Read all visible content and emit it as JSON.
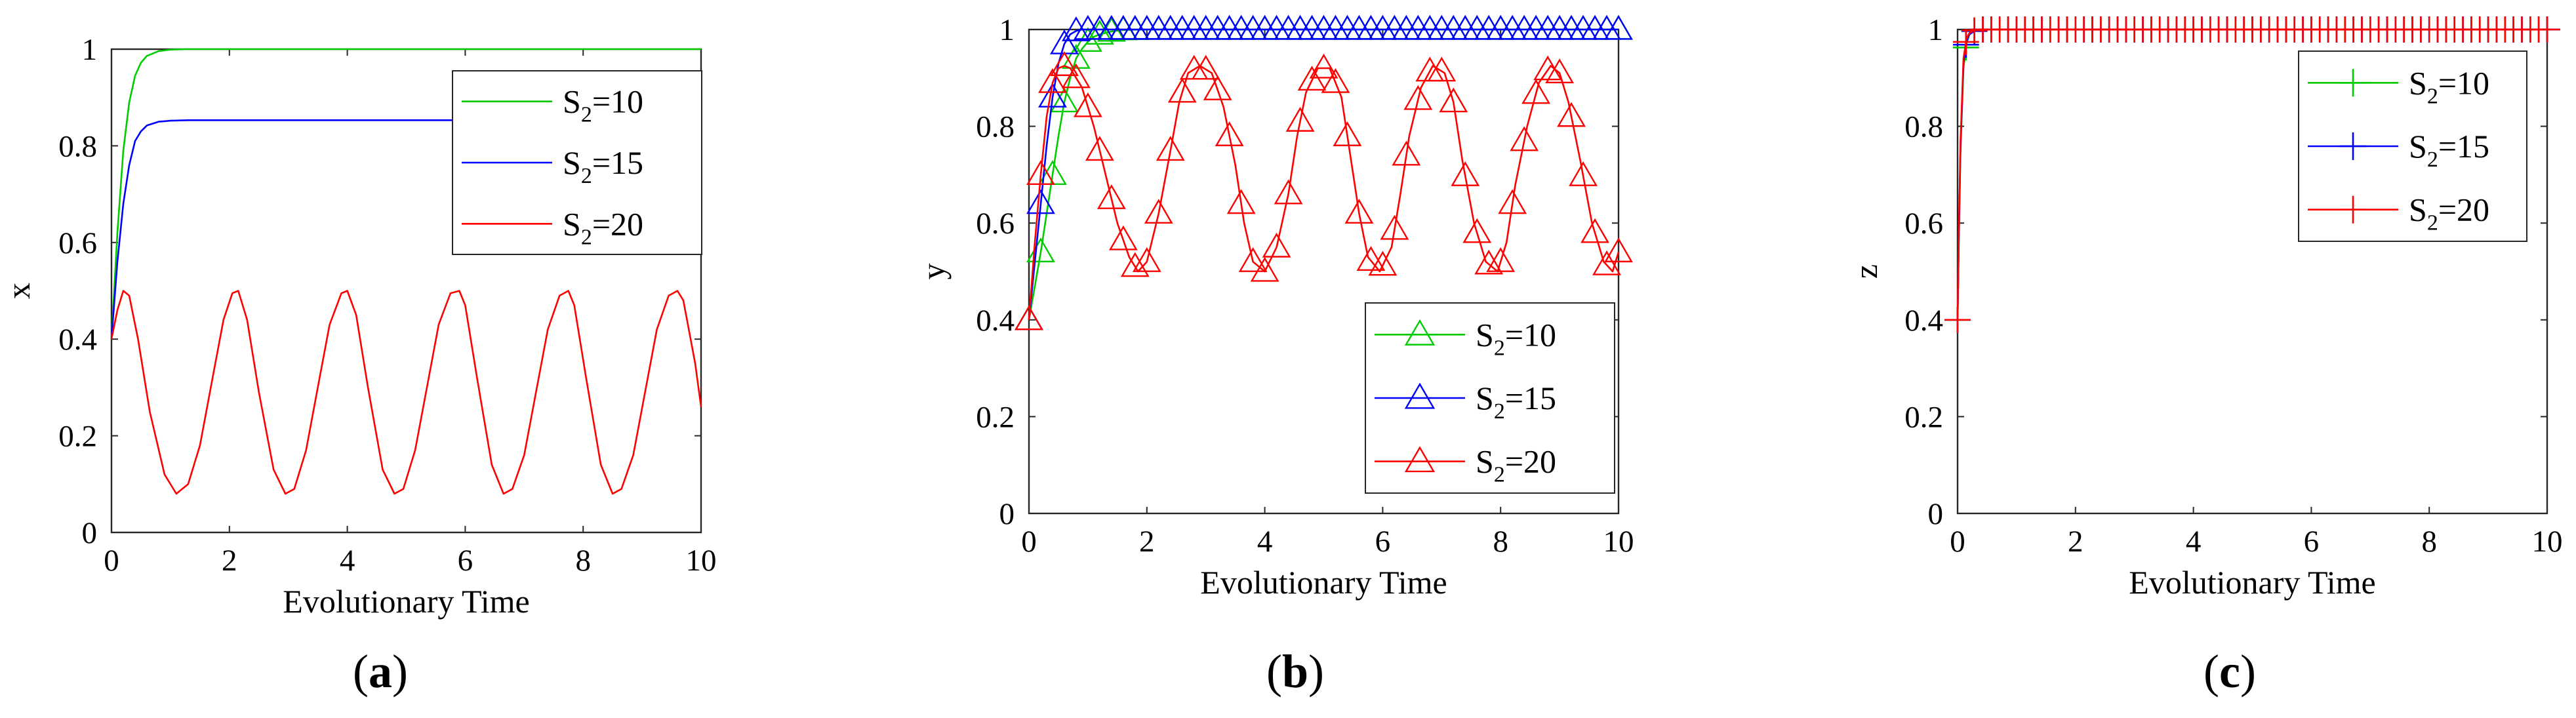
{
  "figure_labels": [
    "a",
    "b",
    "c"
  ],
  "series_colors": {
    "S2=10": "#00cc00",
    "S2=15": "#0000ff",
    "S2=20": "#ff0000"
  },
  "chart_data": [
    {
      "type": "line",
      "panel_label": "a",
      "xlabel": "Evolutionary Time",
      "ylabel": "x",
      "xlim": [
        0,
        10
      ],
      "ylim": [
        0,
        1
      ],
      "xticks": [
        0,
        2,
        4,
        6,
        8,
        10
      ],
      "xtick_labels": [
        "0",
        "2",
        "4",
        "6",
        "8",
        "10"
      ],
      "yticks": [
        0,
        0.2,
        0.4,
        0.6,
        0.8,
        1
      ],
      "ytick_labels": [
        "0",
        "0.2",
        "0.4",
        "0.6",
        "0.8",
        "1"
      ],
      "legend_position": "top-right",
      "series": [
        {
          "name": "S2=10",
          "label_main": "S",
          "label_sub": "2",
          "label_rest": "=10",
          "color": "#00cc00",
          "marker": "none",
          "x": [
            0,
            0.1,
            0.2,
            0.3,
            0.4,
            0.5,
            0.6,
            0.8,
            1.0,
            1.3,
            1.6,
            2.0,
            4,
            6,
            8,
            10
          ],
          "y": [
            0.4,
            0.62,
            0.79,
            0.89,
            0.945,
            0.972,
            0.986,
            0.996,
            0.999,
            1,
            1,
            1,
            1,
            1,
            1,
            1
          ]
        },
        {
          "name": "S2=15",
          "label_main": "S",
          "label_sub": "2",
          "label_rest": "=15",
          "color": "#0000ff",
          "marker": "none",
          "x": [
            0,
            0.1,
            0.2,
            0.3,
            0.4,
            0.5,
            0.6,
            0.8,
            1.0,
            1.3,
            2.0,
            4,
            6,
            8,
            10
          ],
          "y": [
            0.4,
            0.56,
            0.68,
            0.76,
            0.81,
            0.83,
            0.842,
            0.85,
            0.852,
            0.853,
            0.853,
            0.853,
            0.853,
            0.853,
            0.853
          ]
        },
        {
          "name": "S2=20",
          "label_main": "S",
          "label_sub": "2",
          "label_rest": "=20",
          "color": "#ff0000",
          "marker": "none",
          "x": [
            0,
            0.1,
            0.2,
            0.3,
            0.45,
            0.65,
            0.9,
            1.1,
            1.3,
            1.5,
            1.7,
            1.9,
            2.05,
            2.15,
            2.3,
            2.5,
            2.75,
            2.95,
            3.1,
            3.3,
            3.5,
            3.7,
            3.9,
            4.0,
            4.15,
            4.35,
            4.6,
            4.8,
            4.95,
            5.15,
            5.35,
            5.55,
            5.75,
            5.9,
            6.0,
            6.2,
            6.45,
            6.65,
            6.8,
            7.0,
            7.2,
            7.4,
            7.6,
            7.75,
            7.85,
            8.05,
            8.3,
            8.5,
            8.65,
            8.85,
            9.05,
            9.25,
            9.45,
            9.6,
            9.7,
            9.9,
            10.0
          ],
          "y": [
            0.4,
            0.46,
            0.5,
            0.49,
            0.4,
            0.25,
            0.12,
            0.08,
            0.1,
            0.18,
            0.31,
            0.44,
            0.495,
            0.5,
            0.44,
            0.29,
            0.13,
            0.08,
            0.09,
            0.17,
            0.3,
            0.43,
            0.495,
            0.5,
            0.45,
            0.3,
            0.13,
            0.08,
            0.09,
            0.17,
            0.3,
            0.43,
            0.495,
            0.5,
            0.47,
            0.32,
            0.14,
            0.08,
            0.09,
            0.16,
            0.29,
            0.42,
            0.49,
            0.5,
            0.47,
            0.32,
            0.14,
            0.08,
            0.09,
            0.16,
            0.29,
            0.42,
            0.49,
            0.5,
            0.48,
            0.35,
            0.26
          ]
        }
      ]
    },
    {
      "type": "line",
      "panel_label": "b",
      "xlabel": "Evolutionary Time",
      "ylabel": "y",
      "xlim": [
        0,
        10
      ],
      "ylim": [
        0,
        1
      ],
      "xticks": [
        0,
        2,
        4,
        6,
        8,
        10
      ],
      "xtick_labels": [
        "0",
        "2",
        "4",
        "6",
        "8",
        "10"
      ],
      "yticks": [
        0,
        0.2,
        0.4,
        0.6,
        0.8,
        1
      ],
      "ytick_labels": [
        "0",
        "0.2",
        "0.4",
        "0.6",
        "0.8",
        "1"
      ],
      "legend_position": "bottom-right",
      "series": [
        {
          "name": "S2=10",
          "label_main": "S",
          "label_sub": "2",
          "label_rest": "=10",
          "color": "#00cc00",
          "marker": "triangle",
          "x": [
            0,
            0.1,
            0.2,
            0.3,
            0.4,
            0.5,
            0.6,
            0.7,
            0.8,
            0.9,
            1.0,
            1.1,
            1.2,
            1.4,
            1.6,
            2,
            4,
            6,
            8,
            10
          ],
          "y": [
            0.4,
            0.47,
            0.54,
            0.62,
            0.7,
            0.78,
            0.85,
            0.9,
            0.94,
            0.96,
            0.975,
            0.985,
            0.99,
            0.996,
            0.999,
            1,
            1,
            1,
            1,
            1
          ]
        },
        {
          "name": "S2=15",
          "label_main": "S",
          "label_sub": "2",
          "label_rest": "=15",
          "color": "#0000ff",
          "marker": "triangle",
          "x": [
            0,
            0.1,
            0.2,
            0.3,
            0.4,
            0.5,
            0.6,
            0.7,
            0.8,
            0.9,
            1.0,
            1.2,
            1.5,
            2,
            4,
            6,
            8,
            10
          ],
          "y": [
            0.4,
            0.52,
            0.64,
            0.76,
            0.86,
            0.93,
            0.97,
            0.99,
            0.997,
            1,
            1,
            1,
            1,
            1,
            1,
            1,
            1,
            1
          ]
        },
        {
          "name": "S2=20",
          "label_main": "S",
          "label_sub": "2",
          "label_rest": "=20",
          "color": "#ff0000",
          "marker": "triangle",
          "x": [
            0,
            0.1,
            0.2,
            0.3,
            0.4,
            0.5,
            0.6,
            0.7,
            0.9,
            1.1,
            1.3,
            1.5,
            1.7,
            1.85,
            2.0,
            2.2,
            2.4,
            2.55,
            2.7,
            2.9,
            3.1,
            3.3,
            3.5,
            3.65,
            3.8,
            4.0,
            4.2,
            4.4,
            4.55,
            4.7,
            4.9,
            5.1,
            5.3,
            5.45,
            5.6,
            5.75,
            5.95,
            6.15,
            6.3,
            6.45,
            6.65,
            6.85,
            7.05,
            7.2,
            7.35,
            7.55,
            7.75,
            7.95,
            8.1,
            8.25,
            8.45,
            8.65,
            8.85,
            9.0,
            9.15,
            9.35,
            9.55,
            9.75,
            9.9,
            10.0
          ],
          "y": [
            0.4,
            0.56,
            0.7,
            0.82,
            0.89,
            0.92,
            0.925,
            0.92,
            0.88,
            0.8,
            0.7,
            0.6,
            0.53,
            0.5,
            0.52,
            0.62,
            0.75,
            0.85,
            0.91,
            0.925,
            0.91,
            0.84,
            0.72,
            0.6,
            0.52,
            0.5,
            0.55,
            0.66,
            0.78,
            0.87,
            0.92,
            0.92,
            0.86,
            0.74,
            0.62,
            0.53,
            0.5,
            0.55,
            0.66,
            0.78,
            0.88,
            0.925,
            0.91,
            0.85,
            0.73,
            0.6,
            0.52,
            0.5,
            0.56,
            0.68,
            0.8,
            0.89,
            0.925,
            0.91,
            0.85,
            0.73,
            0.6,
            0.52,
            0.5,
            0.54
          ]
        }
      ]
    },
    {
      "type": "line",
      "panel_label": "c",
      "xlabel": "Evolutionary Time",
      "ylabel": "z",
      "xlim": [
        0,
        10
      ],
      "ylim": [
        0,
        1
      ],
      "xticks": [
        0,
        2,
        4,
        6,
        8,
        10
      ],
      "xtick_labels": [
        "0",
        "2",
        "4",
        "6",
        "8",
        "10"
      ],
      "yticks": [
        0,
        0.2,
        0.4,
        0.6,
        0.8,
        1
      ],
      "ytick_labels": [
        "0",
        "0.2",
        "0.4",
        "0.6",
        "0.8",
        "1"
      ],
      "legend_position": "top-right",
      "series": [
        {
          "name": "S2=10",
          "label_main": "S",
          "label_sub": "2",
          "label_rest": "=10",
          "color": "#00cc00",
          "marker": "plus",
          "x": [
            0,
            0.02,
            0.05,
            0.1,
            0.15,
            0.2,
            0.3,
            0.4,
            0.6,
            1,
            2,
            4,
            6,
            8,
            10
          ],
          "y": [
            0.4,
            0.55,
            0.75,
            0.92,
            0.97,
            0.99,
            0.998,
            1,
            1,
            1,
            1,
            1,
            1,
            1,
            1
          ]
        },
        {
          "name": "S2=15",
          "label_main": "S",
          "label_sub": "2",
          "label_rest": "=15",
          "color": "#0000ff",
          "marker": "plus",
          "x": [
            0,
            0.02,
            0.05,
            0.1,
            0.15,
            0.2,
            0.3,
            0.4,
            0.6,
            1,
            2,
            4,
            6,
            8,
            10
          ],
          "y": [
            0.4,
            0.56,
            0.76,
            0.93,
            0.975,
            0.99,
            0.998,
            1,
            1,
            1,
            1,
            1,
            1,
            1,
            1
          ]
        },
        {
          "name": "S2=20",
          "label_main": "S",
          "label_sub": "2",
          "label_rest": "=20",
          "color": "#ff0000",
          "marker": "plus",
          "x": [
            0,
            0.02,
            0.05,
            0.1,
            0.15,
            0.2,
            0.3,
            0.4,
            0.6,
            1,
            2,
            4,
            6,
            8,
            10
          ],
          "y": [
            0.4,
            0.57,
            0.77,
            0.94,
            0.98,
            0.993,
            0.999,
            1,
            1,
            1,
            1,
            1,
            1,
            1,
            1
          ]
        }
      ]
    }
  ]
}
